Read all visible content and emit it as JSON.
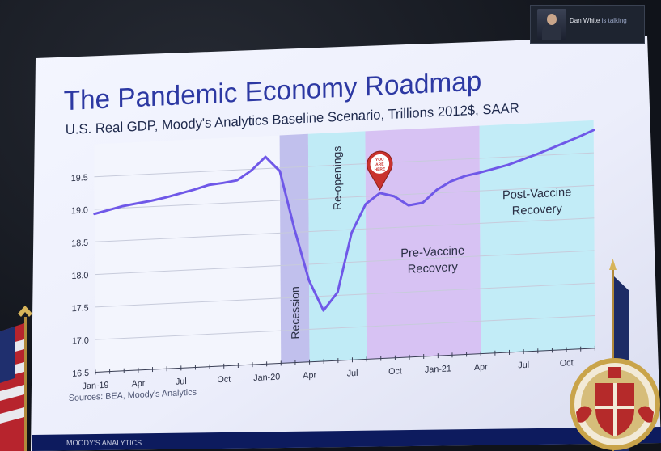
{
  "video": {
    "name": "Dan White",
    "status": "is talking"
  },
  "slide": {
    "title": "The Pandemic Economy Roadmap",
    "subtitle": "U.S. Real GDP, Moody's Analytics Baseline Scenario, Trillions 2012$, SAAR",
    "source": "Sources: BEA, Moody's Analytics",
    "footer_brand": "MOODY'S ANALYTICS",
    "pin_text": [
      "YOU",
      "ARE",
      "HERE"
    ]
  },
  "chart_data": {
    "type": "line",
    "title": "The Pandemic Economy Roadmap",
    "subtitle": "U.S. Real GDP, Moody's Analytics Baseline Scenario, Trillions 2012$, SAAR",
    "xlabel": "",
    "ylabel": "",
    "ylim": [
      16.5,
      20.0
    ],
    "yticks": [
      "19.5",
      "19.0",
      "18.5",
      "18.0",
      "17.5",
      "17.0",
      "16.5"
    ],
    "xtick_labels": [
      "Jan-19",
      "Apr",
      "Jul",
      "Oct",
      "Jan-20",
      "Apr",
      "Jul",
      "Oct",
      "Jan-21",
      "Apr",
      "Jul",
      "Oct"
    ],
    "x": [
      "Jan-19",
      "Feb-19",
      "Mar-19",
      "Apr-19",
      "May-19",
      "Jun-19",
      "Jul-19",
      "Aug-19",
      "Sep-19",
      "Oct-19",
      "Nov-19",
      "Dec-19",
      "Jan-20",
      "Feb-20",
      "Mar-20",
      "Apr-20",
      "May-20",
      "Jun-20",
      "Jul-20",
      "Aug-20",
      "Sep-20",
      "Oct-20",
      "Nov-20",
      "Dec-20",
      "Jan-21",
      "Feb-21",
      "Mar-21",
      "Apr-21",
      "May-21",
      "Jun-21",
      "Jul-21",
      "Aug-21",
      "Sep-21",
      "Oct-21",
      "Nov-21",
      "Dec-21"
    ],
    "series": [
      {
        "values": [
          18.93,
          18.98,
          19.03,
          19.06,
          19.09,
          19.13,
          19.18,
          19.23,
          19.29,
          19.31,
          19.34,
          19.48,
          19.68,
          19.45,
          18.55,
          17.75,
          17.28,
          17.55,
          18.45,
          18.88,
          19.04,
          18.98,
          18.83,
          18.86,
          19.05,
          19.17,
          19.24,
          19.28,
          19.33,
          19.38,
          19.45,
          19.52,
          19.6,
          19.68,
          19.76,
          19.85
        ]
      }
    ],
    "phases": [
      {
        "label": "Recession",
        "start": "Feb-20",
        "end": "Apr-20",
        "color": "#b7b6ea"
      },
      {
        "label": "Re-openings",
        "start": "Apr-20",
        "end": "Aug-20",
        "color": "#b6e9f4"
      },
      {
        "label": "Pre-Vaccine Recovery",
        "start": "Aug-20",
        "end": "Apr-21",
        "color": "#d1b9f1"
      },
      {
        "label": "Post-Vaccine Recovery",
        "start": "Apr-21",
        "end": "Dec-21",
        "color": "#b9eaf6"
      }
    ],
    "grid": true,
    "line_color": "#6f58e8",
    "marker_color": "#c9322d"
  }
}
